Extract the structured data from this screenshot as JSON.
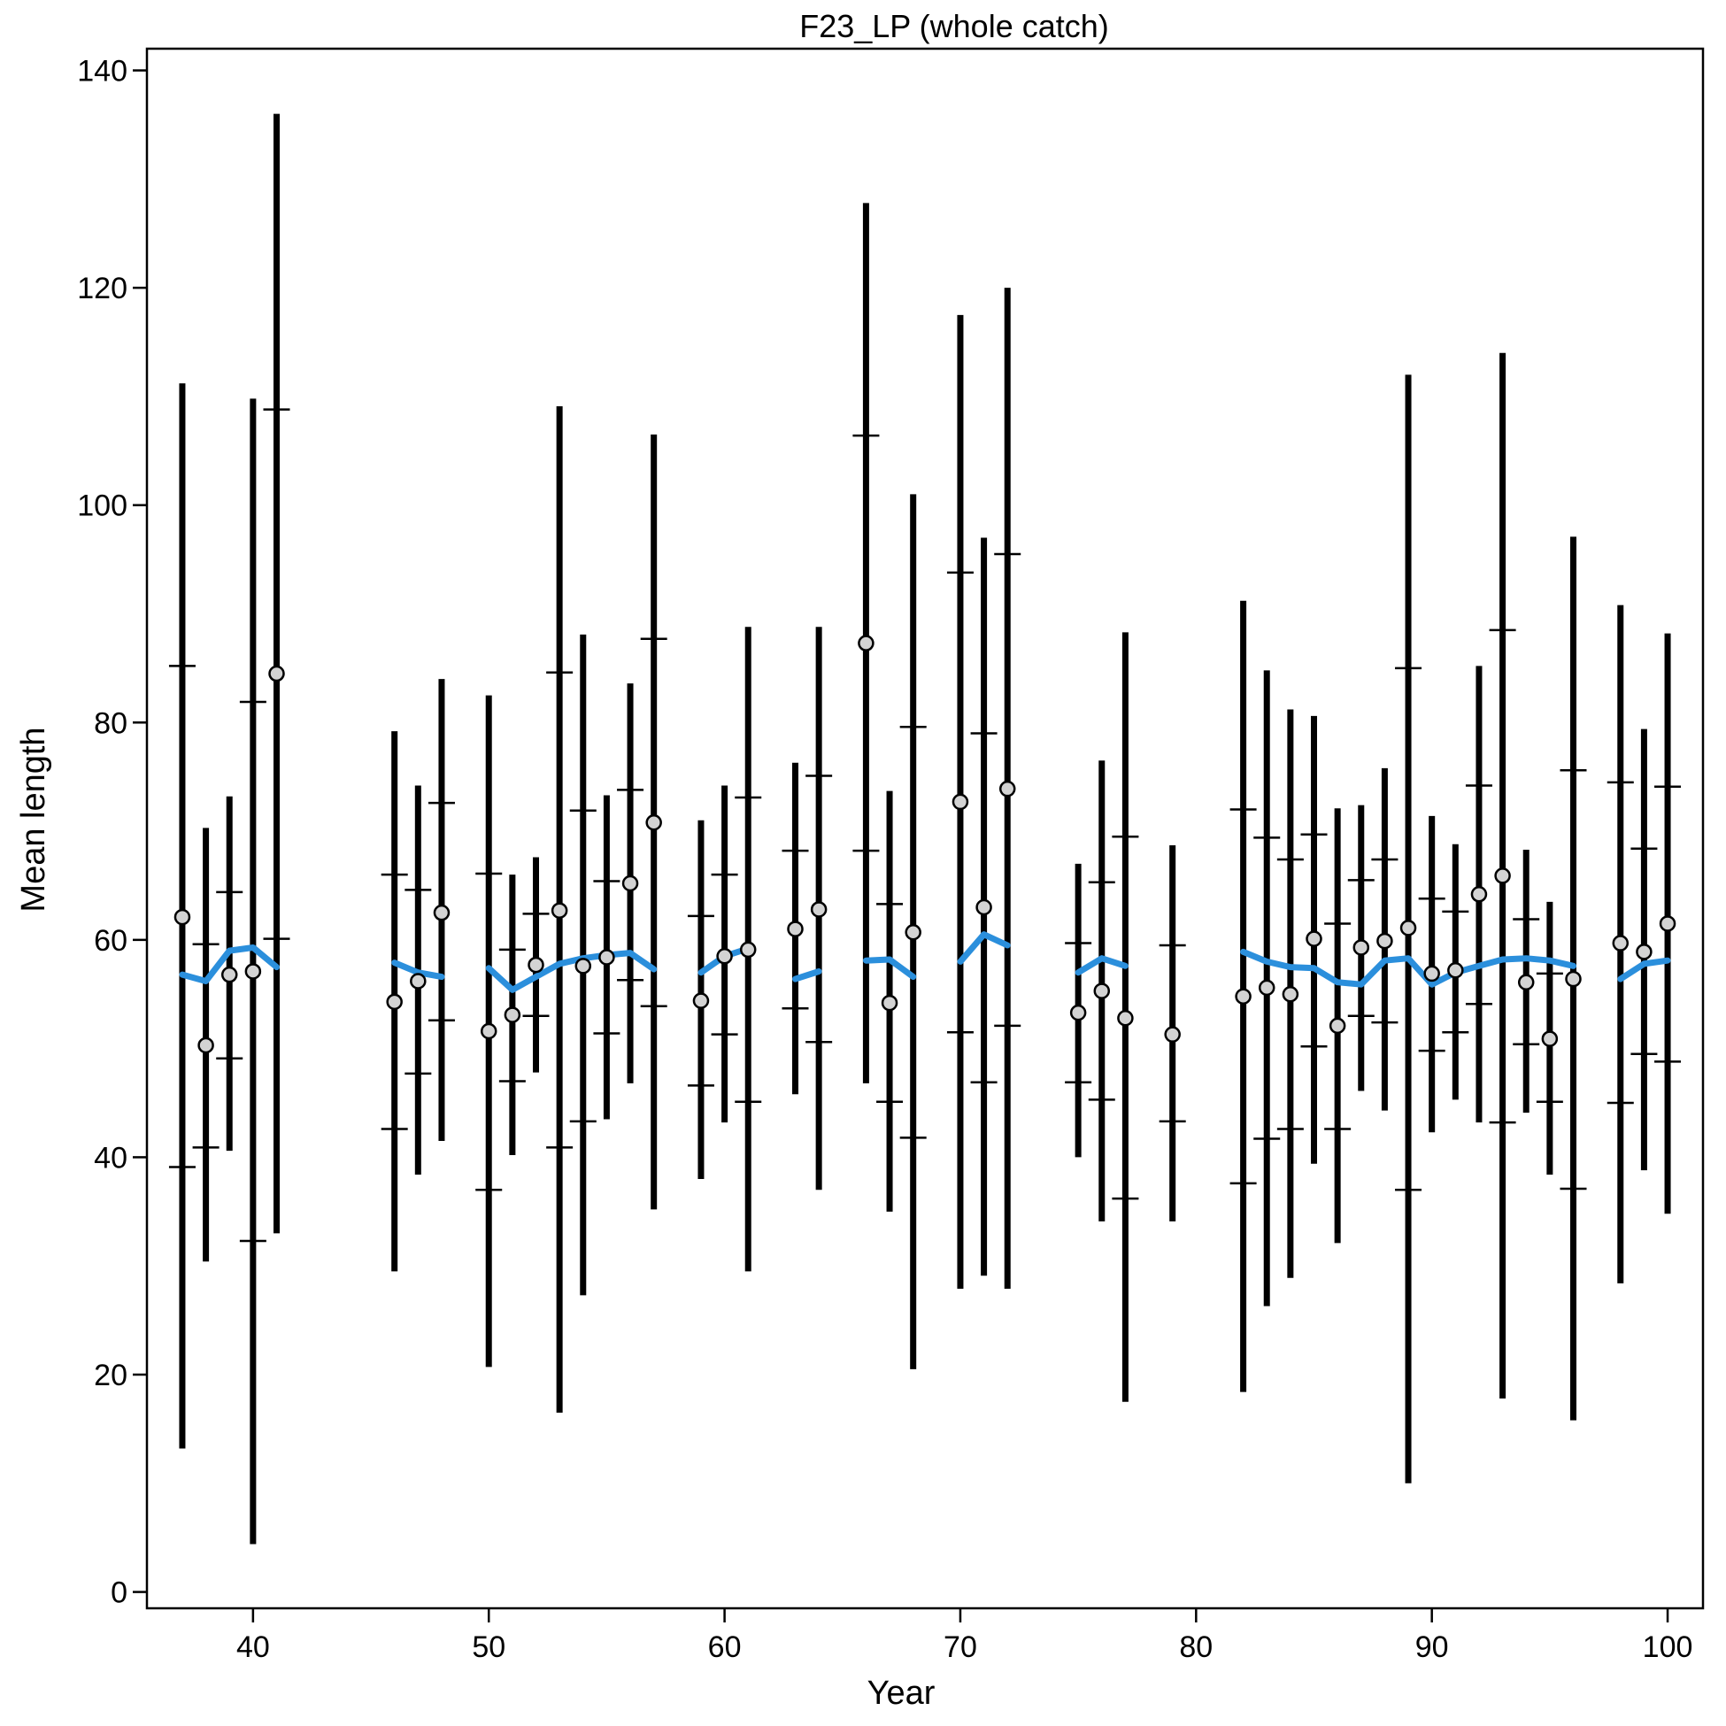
{
  "chart_data": {
    "type": "line",
    "title": "F23_LP (whole catch)",
    "xlabel": "Year",
    "ylabel": "Mean length",
    "xlim": [
      35.5,
      101.5
    ],
    "ylim": [
      -1.5,
      142
    ],
    "x_ticks": [
      40,
      50,
      60,
      70,
      80,
      90,
      100
    ],
    "y_ticks": [
      0,
      20,
      40,
      60,
      80,
      100,
      120,
      140
    ],
    "grid": false,
    "colors": {
      "expected_line": "#2b8fdc",
      "bars": "#000000",
      "points_fill": "#d3d3d3"
    },
    "series": [
      {
        "kind": "observed_with_intervals",
        "x": [
          37,
          38,
          39,
          40,
          41,
          46,
          47,
          48,
          50,
          51,
          52,
          53,
          54,
          55,
          56,
          57,
          59,
          60,
          61,
          63,
          64,
          66,
          67,
          68,
          70,
          71,
          72,
          75,
          76,
          77,
          79,
          82,
          83,
          84,
          85,
          86,
          87,
          88,
          89,
          90,
          91,
          92,
          93,
          94,
          95,
          96,
          98,
          99,
          100
        ],
        "obs": [
          62.1,
          50.3,
          56.8,
          57.1,
          84.5,
          54.3,
          56.2,
          62.5,
          51.6,
          53.1,
          57.7,
          62.7,
          57.6,
          58.4,
          65.2,
          70.8,
          54.4,
          58.5,
          59.1,
          61.0,
          62.8,
          87.3,
          54.2,
          60.7,
          72.7,
          63.0,
          73.9,
          53.3,
          55.3,
          52.8,
          51.3,
          54.8,
          55.6,
          55.0,
          60.1,
          52.1,
          59.3,
          59.9,
          61.1,
          56.9,
          57.2,
          64.2,
          65.9,
          56.1,
          50.9,
          56.4,
          59.7,
          58.9,
          61.5
        ],
        "inner_low": [
          39.1,
          40.9,
          49.1,
          32.3,
          60.1,
          42.6,
          47.7,
          52.6,
          37.0,
          47.0,
          53.0,
          40.9,
          43.3,
          51.4,
          56.3,
          53.9,
          46.6,
          51.3,
          45.1,
          53.7,
          50.6,
          68.2,
          45.1,
          41.8,
          51.5,
          46.9,
          52.1,
          46.9,
          45.3,
          36.2,
          43.3,
          37.6,
          41.7,
          42.6,
          50.2,
          42.6,
          53.0,
          52.4,
          37.0,
          49.8,
          51.5,
          54.1,
          43.2,
          50.4,
          45.1,
          37.1,
          45.0,
          49.5,
          48.8
        ],
        "inner_high": [
          85.2,
          59.6,
          64.4,
          81.9,
          108.8,
          66.0,
          64.6,
          72.6,
          66.1,
          59.1,
          62.4,
          84.6,
          71.9,
          65.4,
          73.8,
          87.7,
          62.2,
          66.0,
          73.1,
          68.2,
          75.1,
          106.4,
          63.3,
          79.6,
          93.8,
          79.0,
          95.5,
          59.7,
          65.3,
          69.5,
          59.5,
          72.0,
          69.4,
          67.4,
          69.7,
          61.5,
          65.5,
          67.4,
          85.0,
          63.8,
          62.6,
          74.2,
          88.5,
          61.9,
          56.9,
          75.6,
          74.5,
          68.4,
          74.1
        ],
        "outer_low": [
          13.2,
          30.4,
          40.6,
          4.4,
          33.0,
          29.5,
          38.4,
          41.5,
          20.7,
          40.2,
          47.8,
          16.5,
          27.3,
          43.5,
          46.8,
          35.2,
          38.0,
          43.2,
          29.5,
          45.8,
          37.0,
          46.8,
          35.0,
          20.5,
          27.9,
          29.1,
          27.9,
          40.0,
          34.1,
          17.5,
          34.1,
          18.4,
          26.3,
          28.9,
          39.4,
          32.1,
          46.1,
          44.3,
          10.0,
          42.3,
          45.3,
          43.2,
          17.8,
          44.1,
          38.4,
          15.8,
          28.4,
          38.8,
          34.8
        ],
        "outer_high": [
          111.2,
          70.3,
          73.2,
          109.8,
          136.0,
          79.2,
          74.2,
          84.0,
          82.5,
          66.0,
          67.6,
          109.1,
          88.1,
          73.3,
          83.6,
          106.5,
          71.0,
          74.2,
          88.8,
          76.3,
          88.8,
          127.8,
          73.7,
          101.0,
          117.5,
          97.0,
          120.0,
          67.0,
          76.5,
          88.3,
          68.7,
          91.2,
          84.8,
          81.2,
          80.6,
          72.1,
          72.4,
          75.8,
          112.0,
          71.4,
          68.8,
          85.2,
          114.0,
          68.3,
          63.5,
          97.1,
          90.8,
          79.4,
          88.2
        ]
      },
      {
        "kind": "expected_line",
        "segments": [
          {
            "x": [
              37,
              38,
              39,
              40,
              41
            ],
            "y": [
              56.8,
              56.2,
              59.0,
              59.3,
              57.5
            ]
          },
          {
            "x": [
              46,
              47,
              48
            ],
            "y": [
              57.9,
              57.0,
              56.6
            ]
          },
          {
            "x": [
              50,
              51,
              52,
              53,
              54,
              55,
              56,
              57
            ],
            "y": [
              57.4,
              55.4,
              56.6,
              57.8,
              58.3,
              58.6,
              58.8,
              57.3
            ]
          },
          {
            "x": [
              59,
              60,
              61
            ],
            "y": [
              57.0,
              58.5,
              59.2
            ]
          },
          {
            "x": [
              63,
              64
            ],
            "y": [
              56.4,
              57.1
            ]
          },
          {
            "x": [
              66,
              67,
              68
            ],
            "y": [
              58.1,
              58.2,
              56.6
            ]
          },
          {
            "x": [
              70,
              71,
              72
            ],
            "y": [
              58.0,
              60.5,
              59.5
            ]
          },
          {
            "x": [
              75,
              76,
              77
            ],
            "y": [
              57.0,
              58.3,
              57.6
            ]
          },
          {
            "x": [
              79
            ],
            "y": [
              57.5
            ]
          },
          {
            "x": [
              82,
              83,
              84,
              85,
              86,
              87,
              88,
              89,
              90,
              91,
              92,
              93,
              94,
              95,
              96
            ],
            "y": [
              58.9,
              58.0,
              57.5,
              57.4,
              56.1,
              55.9,
              58.1,
              58.3,
              55.9,
              57.0,
              57.6,
              58.2,
              58.3,
              58.1,
              57.6
            ]
          },
          {
            "x": [
              98,
              99,
              100
            ],
            "y": [
              56.4,
              57.8,
              58.1
            ]
          }
        ]
      }
    ]
  }
}
